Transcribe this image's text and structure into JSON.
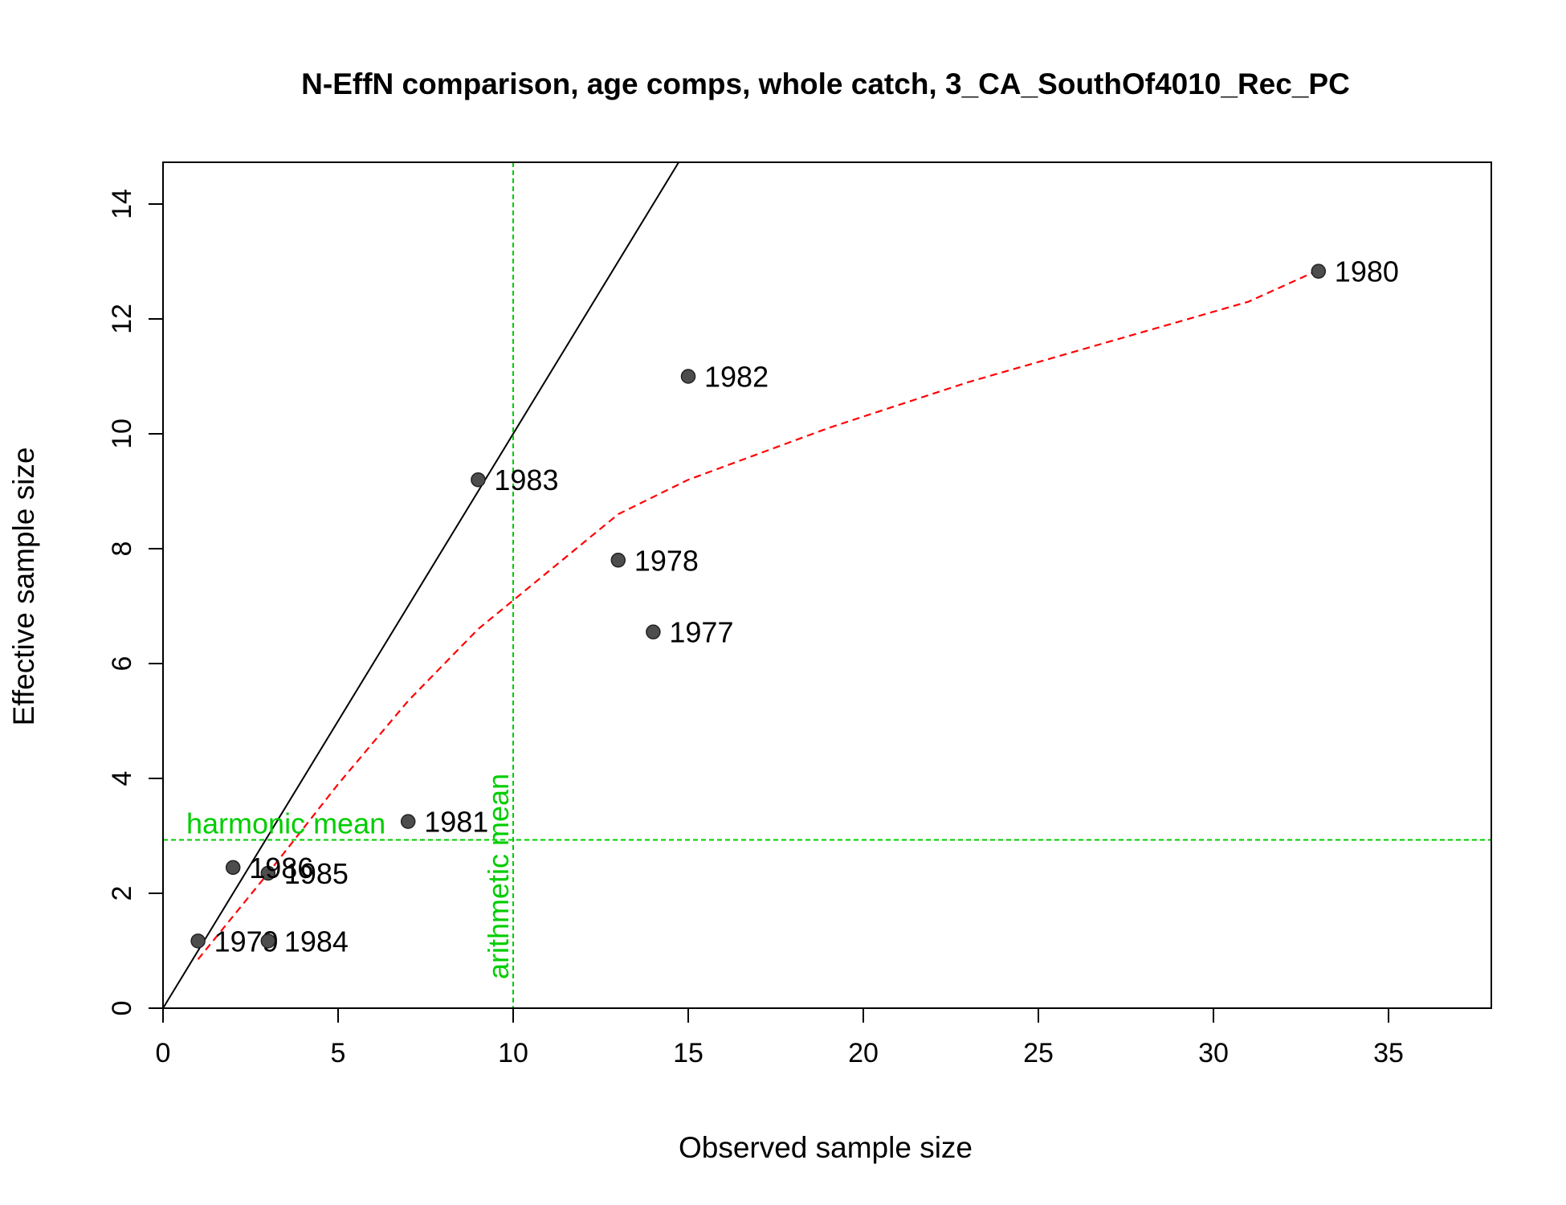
{
  "chart_data": {
    "type": "scatter",
    "title": "N-EffN comparison, age comps, whole catch, 3_CA_SouthOf4010_Rec_PC",
    "xlabel": "Observed sample size",
    "ylabel": "Effective sample size",
    "xlim": [
      0,
      38
    ],
    "ylim": [
      0,
      14.7
    ],
    "xticks": [
      0,
      5,
      10,
      15,
      20,
      25,
      30,
      35
    ],
    "yticks": [
      0,
      2,
      4,
      6,
      8,
      10,
      12,
      14
    ],
    "grid": false,
    "legend": "none",
    "points": [
      {
        "label": "1977",
        "x": 14,
        "y": 6.55
      },
      {
        "label": "1978",
        "x": 13,
        "y": 7.8
      },
      {
        "label": "1979",
        "x": 1,
        "y": 1.17
      },
      {
        "label": "1980",
        "x": 33,
        "y": 12.83
      },
      {
        "label": "1981",
        "x": 7,
        "y": 3.25
      },
      {
        "label": "1982",
        "x": 15,
        "y": 11.0
      },
      {
        "label": "1983",
        "x": 9,
        "y": 9.2
      },
      {
        "label": "1984",
        "x": 3,
        "y": 1.17
      },
      {
        "label": "1985",
        "x": 3,
        "y": 2.35
      },
      {
        "label": "1986",
        "x": 2,
        "y": 2.45
      }
    ],
    "one_to_one_line": {
      "slope": 1,
      "intercept": 0,
      "color": "#000000"
    },
    "smoother": {
      "color": "#ff0000",
      "style": "dashed",
      "x": [
        1,
        2,
        3,
        5,
        7,
        9,
        11,
        13,
        15,
        19,
        23,
        27,
        31,
        33
      ],
      "y": [
        0.85,
        1.6,
        2.35,
        3.9,
        5.35,
        6.6,
        7.6,
        8.6,
        9.2,
        10.1,
        10.9,
        11.6,
        12.3,
        12.85
      ]
    },
    "arithmetic_mean": {
      "value": 10,
      "label": "arithmetic mean",
      "color": "#00cd00"
    },
    "harmonic_mean": {
      "value": 2.93,
      "label": "harmonic mean",
      "color": "#00cd00"
    },
    "point_color": "#4d4d4d"
  }
}
